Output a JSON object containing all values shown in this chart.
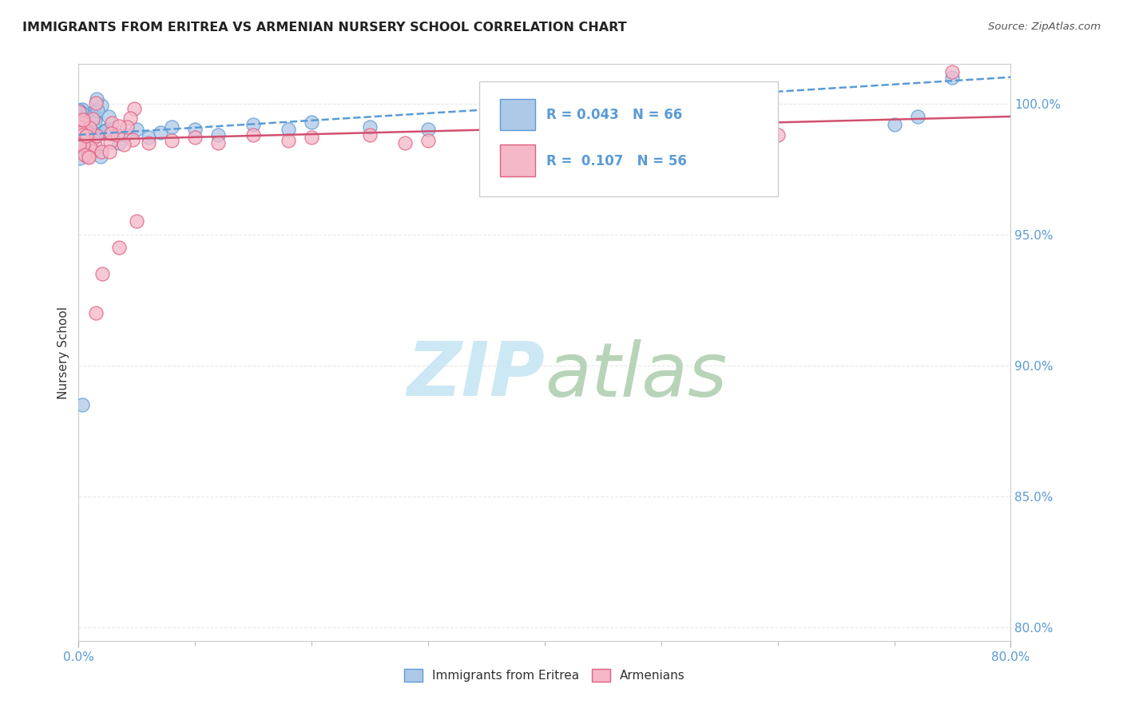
{
  "title": "IMMIGRANTS FROM ERITREA VS ARMENIAN NURSERY SCHOOL CORRELATION CHART",
  "source": "Source: ZipAtlas.com",
  "ylabel": "Nursery School",
  "xlim": [
    0.0,
    80.0
  ],
  "ylim": [
    79.5,
    101.5
  ],
  "yticks": [
    80.0,
    85.0,
    90.0,
    95.0,
    100.0
  ],
  "ytick_labels": [
    "80.0%",
    "85.0%",
    "90.0%",
    "95.0%",
    "100.0%"
  ],
  "blue_R": 0.043,
  "blue_N": 66,
  "pink_R": 0.107,
  "pink_N": 56,
  "blue_color": "#aec8e8",
  "blue_edge": "#5b9bd5",
  "pink_color": "#f4b8c8",
  "pink_edge": "#e06080",
  "trend_blue_color": "#5b9bd5",
  "trend_pink_color": "#d05070",
  "background_color": "#ffffff",
  "grid_color": "#e8e8e8",
  "grid_style": "--",
  "watermark_color": "#cce8f4",
  "tick_color": "#5b9bd5",
  "title_color": "#222222",
  "source_color": "#555555"
}
